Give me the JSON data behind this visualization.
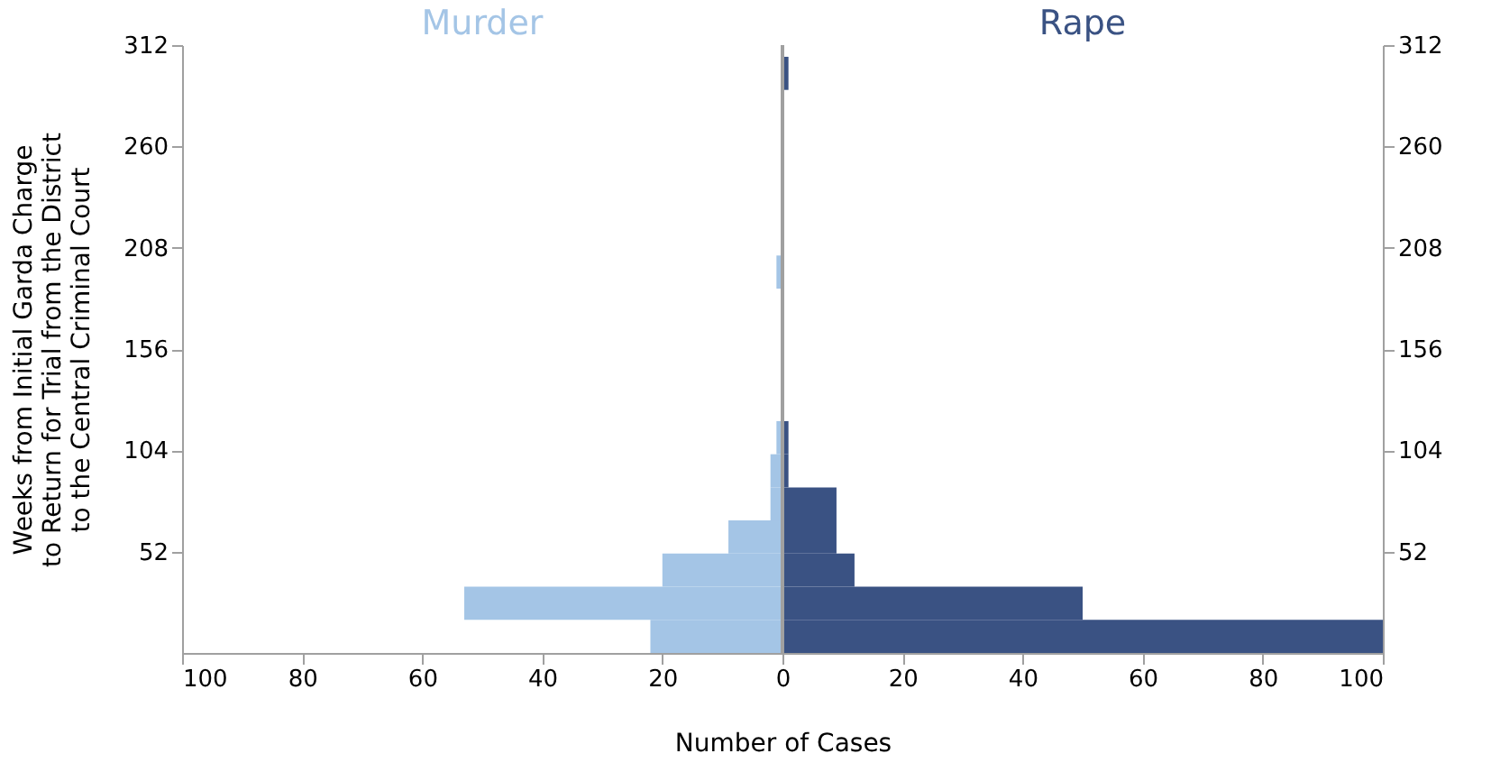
{
  "chart_data": {
    "type": "histogram",
    "orientation": "horizontal",
    "xlabel": "Number of Cases",
    "ylabel": "Weeks from Initial Garda Charge\nto Return for Trial from the District\nto the Central Criminal Court",
    "bins": [
      0,
      17,
      34,
      51,
      68,
      85,
      102,
      119,
      136,
      153,
      170,
      187,
      204,
      221,
      238,
      255,
      272,
      289,
      306
    ],
    "series": [
      {
        "name": "Murder",
        "color": "#a4c5e6",
        "values": [
          -22,
          -53,
          -20,
          -9,
          -2,
          -2,
          -1,
          0,
          0,
          0,
          0,
          -1,
          0,
          0,
          0,
          0,
          0,
          0
        ]
      },
      {
        "name": "Rape",
        "color": "#3a5283",
        "values": [
          100,
          50,
          12,
          9,
          9,
          1,
          1,
          0,
          0,
          0,
          0,
          0,
          0,
          0,
          0,
          0,
          0,
          1
        ]
      }
    ],
    "xlim": [
      -100,
      100
    ],
    "xticks": [
      {
        "value": -100,
        "label": "100"
      },
      {
        "value": -80,
        "label": "80"
      },
      {
        "value": -60,
        "label": "60"
      },
      {
        "value": -40,
        "label": "40"
      },
      {
        "value": -20,
        "label": "20"
      },
      0,
      20,
      40,
      60,
      80,
      100
    ],
    "ylim": [
      0,
      312
    ],
    "yticks": [
      52,
      104,
      156,
      208,
      260,
      312
    ],
    "y2lim": [
      0,
      312
    ],
    "y2ticks": [
      52,
      104,
      156,
      208,
      260,
      312
    ],
    "ref_lines": [
      {
        "axis": "x",
        "value": 0,
        "color": "#a0a0a0"
      }
    ],
    "grid": false,
    "legend": false
  }
}
